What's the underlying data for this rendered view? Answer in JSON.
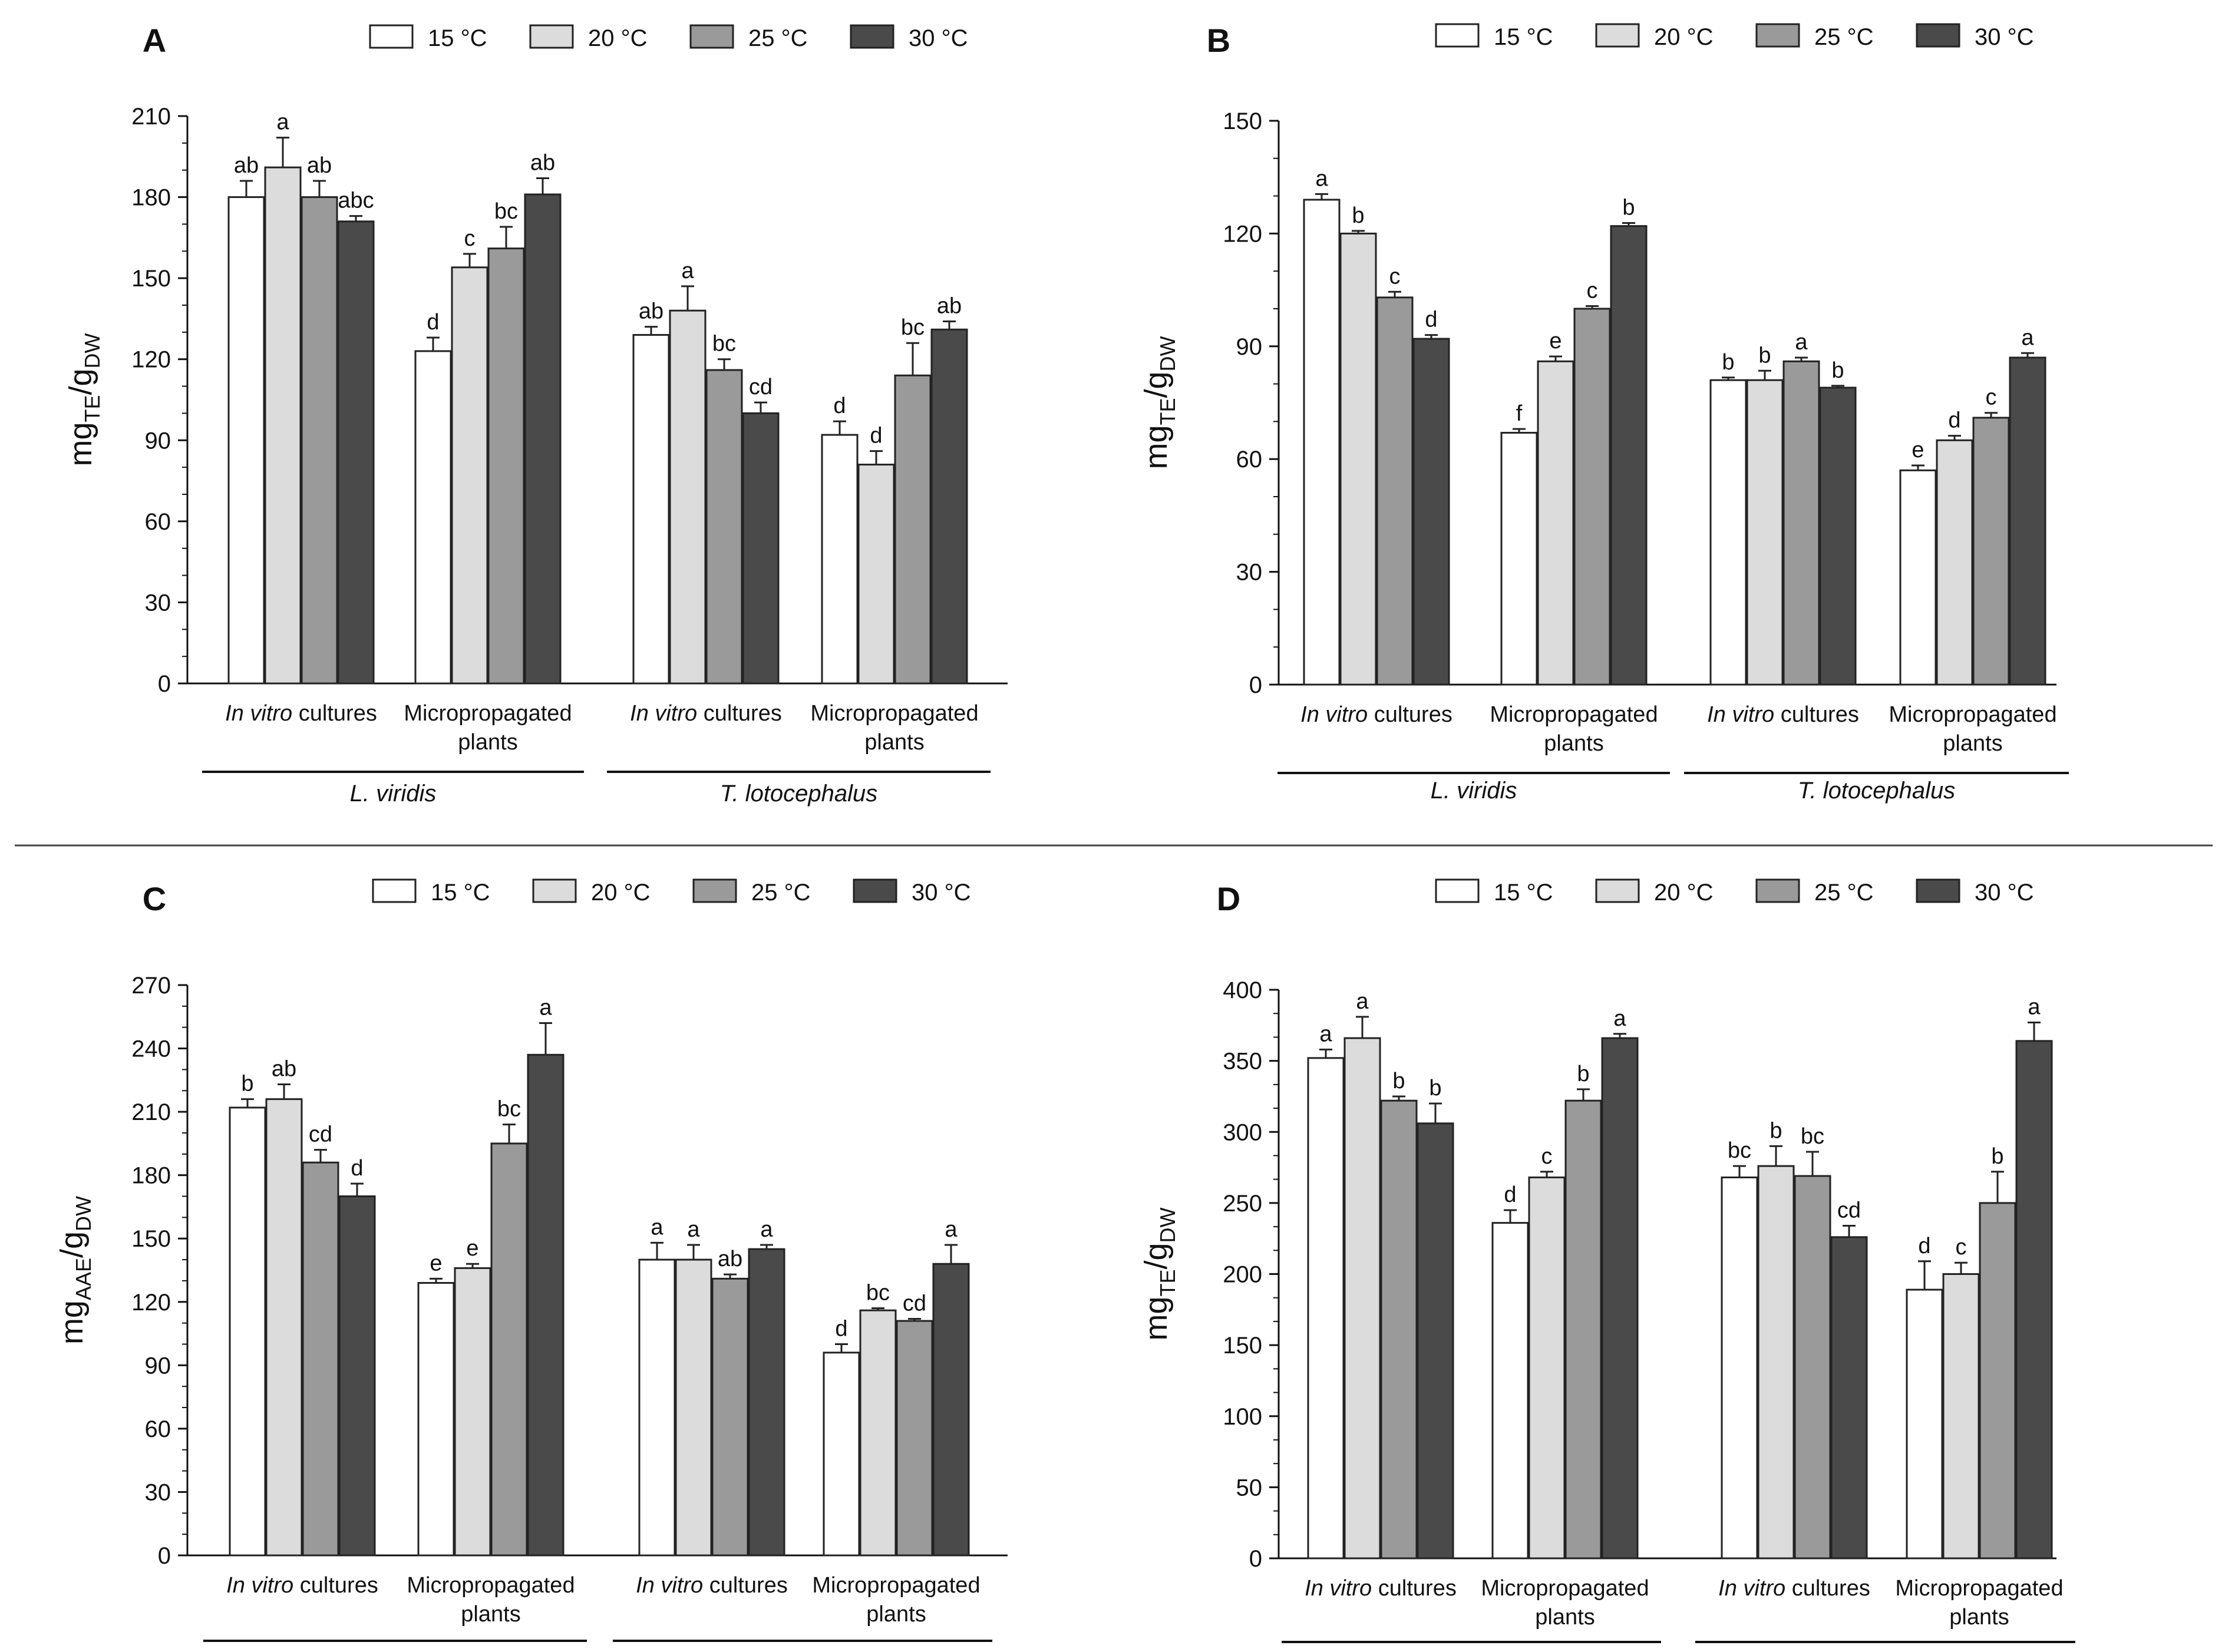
{
  "legend": {
    "items": [
      "15 °C",
      "20 °C",
      "25 °C",
      "30 °C"
    ],
    "colors": [
      "#ffffff",
      "#dcdcdc",
      "#9a9a9a",
      "#4a4a4a"
    ]
  },
  "group_labels": {
    "in_vitro": "cultures",
    "in_vitro_italic": "In vitro",
    "micro_line1": "Micropropagated",
    "micro_line2": "plants",
    "species": [
      "L. viridis",
      "T. lotocephalus"
    ]
  },
  "chart_data": [
    {
      "type": "bar",
      "panel": "A",
      "ylabel": {
        "main": "mg",
        "sub1": "TE",
        "sep": "/g",
        "sub2": "DW"
      },
      "ylim": [
        0,
        210
      ],
      "yticks": [
        "0",
        "30",
        "60",
        "90",
        "120",
        "150",
        "180",
        "210"
      ],
      "show_species": true,
      "categories": [
        "L. viridis In vitro cultures",
        "L. viridis Micropropagated plants",
        "T. lotocephalus In vitro cultures",
        "T. lotocephalus Micropropagated plants"
      ],
      "series": [
        {
          "name": "15 °C",
          "values": [
            180,
            123,
            129,
            92
          ],
          "errors": [
            6,
            5,
            3,
            5
          ],
          "letters": [
            "ab",
            "d",
            "ab",
            "d"
          ]
        },
        {
          "name": "20 °C",
          "values": [
            191,
            154,
            138,
            81
          ],
          "errors": [
            11,
            5,
            9,
            5
          ],
          "letters": [
            "a",
            "c",
            "a",
            "d"
          ]
        },
        {
          "name": "25 °C",
          "values": [
            180,
            161,
            116,
            114
          ],
          "errors": [
            6,
            8,
            4,
            12
          ],
          "letters": [
            "ab",
            "bc",
            "bc",
            "bc"
          ]
        },
        {
          "name": "30 °C",
          "values": [
            171,
            181,
            100,
            131
          ],
          "errors": [
            2,
            6,
            4,
            3
          ],
          "letters": [
            "abc",
            "ab",
            "cd",
            "ab"
          ]
        }
      ]
    },
    {
      "type": "bar",
      "panel": "B",
      "ylabel": {
        "main": "mg",
        "sub1": "TE",
        "sep": "/g",
        "sub2": "DW"
      },
      "ylim": [
        0,
        150
      ],
      "yticks": [
        "0",
        "30",
        "60",
        "90",
        "120",
        "150"
      ],
      "show_species": true,
      "categories": [
        "L. viridis In vitro cultures",
        "L. viridis Micropropagated plants",
        "T. lotocephalus In vitro cultures",
        "T. lotocephalus Micropropagated plants"
      ],
      "series": [
        {
          "name": "15 °C",
          "values": [
            129,
            67,
            81,
            57
          ],
          "errors": [
            1.5,
            1,
            0.7,
            1.3
          ],
          "letters": [
            "a",
            "f",
            "b",
            "e"
          ]
        },
        {
          "name": "20 °C",
          "values": [
            120,
            86,
            81,
            65
          ],
          "errors": [
            0.7,
            1.3,
            2.5,
            1.2
          ],
          "letters": [
            "b",
            "e",
            "b",
            "d"
          ]
        },
        {
          "name": "25 °C",
          "values": [
            103,
            100,
            86,
            71
          ],
          "errors": [
            1.5,
            0.7,
            1,
            1.3
          ],
          "letters": [
            "c",
            "c",
            "a",
            "c"
          ]
        },
        {
          "name": "30 °C",
          "values": [
            92,
            122,
            79,
            87
          ],
          "errors": [
            1,
            0.8,
            0.5,
            1.2
          ],
          "letters": [
            "d",
            "b",
            "b",
            "a"
          ]
        }
      ]
    },
    {
      "type": "bar",
      "panel": "C",
      "ylabel": {
        "main": "mg",
        "sub1": "AAE",
        "sep": "/g",
        "sub2": "DW"
      },
      "ylim": [
        0,
        270
      ],
      "yticks": [
        "0",
        "30",
        "60",
        "90",
        "120",
        "150",
        "180",
        "210",
        "240",
        "270"
      ],
      "show_species": false,
      "categories": [
        "L. viridis In vitro cultures",
        "L. viridis Micropropagated plants",
        "T. lotocephalus In vitro cultures",
        "T. lotocephalus Micropropagated plants"
      ],
      "series": [
        {
          "name": "15 °C",
          "values": [
            212,
            129,
            140,
            96
          ],
          "errors": [
            4,
            2,
            8,
            4
          ],
          "letters": [
            "b",
            "e",
            "a",
            "d"
          ]
        },
        {
          "name": "20 °C",
          "values": [
            216,
            136,
            140,
            116
          ],
          "errors": [
            7,
            2,
            7,
            1
          ],
          "letters": [
            "ab",
            "e",
            "a",
            "bc"
          ]
        },
        {
          "name": "25 °C",
          "values": [
            186,
            195,
            131,
            111
          ],
          "errors": [
            6,
            9,
            2,
            1
          ],
          "letters": [
            "cd",
            "bc",
            "ab",
            "cd"
          ]
        },
        {
          "name": "30 °C",
          "values": [
            170,
            237,
            145,
            138
          ],
          "errors": [
            6,
            15,
            2,
            9
          ],
          "letters": [
            "d",
            "a",
            "a",
            "a"
          ]
        }
      ]
    },
    {
      "type": "bar",
      "panel": "D",
      "ylabel": {
        "main": "mg",
        "sub1": "TE",
        "sep": "/g",
        "sub2": "DW"
      },
      "ylim": [
        0,
        400
      ],
      "yticks": [
        "0",
        "50",
        "100",
        "150",
        "200",
        "250",
        "300",
        "350",
        "400"
      ],
      "show_species": false,
      "categories": [
        "L. viridis In vitro cultures",
        "L. viridis Micropropagated plants",
        "T. lotocephalus In vitro cultures",
        "T. lotocephalus Micropropagated plants"
      ],
      "series": [
        {
          "name": "15 °C",
          "values": [
            352,
            236,
            268,
            189
          ],
          "errors": [
            6,
            9,
            8,
            20
          ],
          "letters": [
            "a",
            "d",
            "bc",
            "d"
          ]
        },
        {
          "name": "20 °C",
          "values": [
            366,
            268,
            276,
            200
          ],
          "errors": [
            15,
            4,
            14,
            8
          ],
          "letters": [
            "a",
            "c",
            "b",
            "c"
          ]
        },
        {
          "name": "25 °C",
          "values": [
            322,
            322,
            269,
            250
          ],
          "errors": [
            3,
            8,
            17,
            22
          ],
          "letters": [
            "b",
            "b",
            "bc",
            "b"
          ]
        },
        {
          "name": "30 °C",
          "values": [
            306,
            366,
            226,
            364
          ],
          "errors": [
            14,
            3,
            8,
            13
          ],
          "letters": [
            "b",
            "a",
            "cd",
            "a"
          ]
        }
      ]
    }
  ]
}
